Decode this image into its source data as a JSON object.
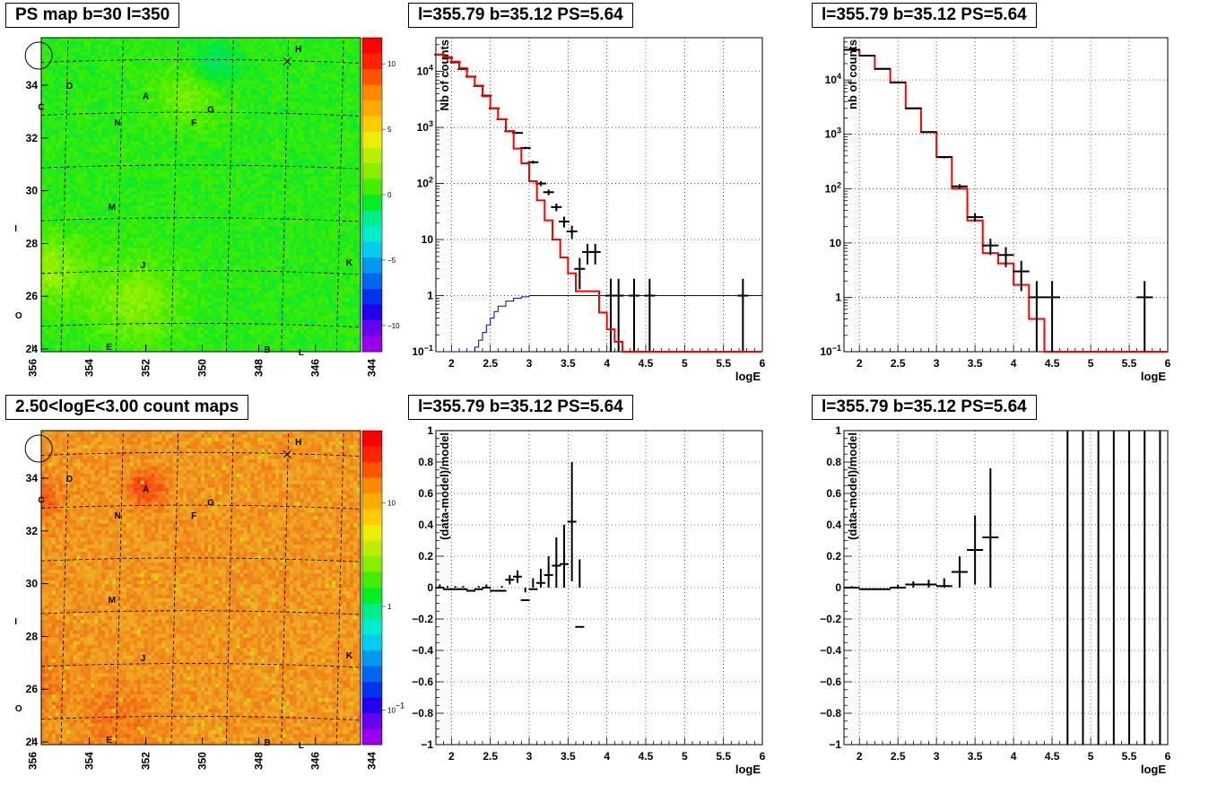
{
  "panels": {
    "p1": {
      "title": "PS map b=30 l=350"
    },
    "p2": {
      "title": "l=355.79 b=35.12 PS=5.64"
    },
    "p3": {
      "title": "l=355.79 b=35.12 PS=5.64"
    },
    "p4": {
      "title": "2.50<logE<3.00 count maps"
    },
    "p5": {
      "title": "l=355.79 b=35.12 PS=5.64"
    },
    "p6": {
      "title": "l=355.79 b=35.12 PS=5.64"
    }
  },
  "colors": {
    "model": "#ff0000",
    "exposure": "#0000cc",
    "data": "#000000"
  },
  "chart_data": [
    {
      "type": "heatmap",
      "title": "PS map b=30 l=350",
      "x_ticks": [
        "356",
        "354",
        "352",
        "350",
        "348",
        "346",
        "344"
      ],
      "y_ticks": [
        "24",
        "26",
        "28",
        "30",
        "32",
        "34"
      ],
      "xlim": [
        355.7,
        344.4
      ],
      "ylim": [
        23.9,
        35.8
      ],
      "z_ticks": [
        "10",
        "5",
        "0",
        "-5",
        "-10"
      ],
      "zlim": [
        -12,
        12
      ],
      "base_color": "green",
      "sources": [
        {
          "name": "H",
          "l": 346.6,
          "b": 35.4
        },
        {
          "name": "D",
          "l": 354.7,
          "b": 34.0
        },
        {
          "name": "A",
          "l": 352.0,
          "b": 33.6
        },
        {
          "name": "C",
          "l": 355.7,
          "b": 33.2
        },
        {
          "name": "G",
          "l": 349.7,
          "b": 33.1
        },
        {
          "name": "N",
          "l": 353.0,
          "b": 32.6
        },
        {
          "name": "F",
          "l": 350.3,
          "b": 32.6
        },
        {
          "name": "M",
          "l": 353.2,
          "b": 29.4
        },
        {
          "name": "I",
          "l": 356.6,
          "b": 28.6
        },
        {
          "name": "J",
          "l": 352.1,
          "b": 27.2
        },
        {
          "name": "K",
          "l": 344.8,
          "b": 27.3
        },
        {
          "name": "O",
          "l": 356.5,
          "b": 25.3
        },
        {
          "name": "E",
          "l": 353.3,
          "b": 24.1
        },
        {
          "name": "B",
          "l": 347.7,
          "b": 24.0
        },
        {
          "name": "L",
          "l": 346.5,
          "b": 23.9
        }
      ],
      "circle": {
        "l": 355.79,
        "b": 35.12
      },
      "cross": {
        "l": 347.0,
        "b": 34.9
      }
    },
    {
      "type": "line",
      "title": "l=355.79 b=35.12 PS=5.64",
      "xlabel": "logE",
      "ylabel": "Nb of counts",
      "yscale": "log",
      "xlim": [
        1.8,
        6.0
      ],
      "ylim": [
        0.1,
        40000
      ],
      "x_ticks": [
        "2",
        "2.5",
        "3",
        "3.5",
        "4",
        "4.5",
        "5",
        "5.5",
        "6"
      ],
      "y_ticks": [
        "10-1",
        "1",
        "10",
        "102",
        "103",
        "104"
      ],
      "series": [
        {
          "name": "model",
          "style": "step",
          "edges": [
            1.8,
            1.9,
            2.0,
            2.1,
            2.2,
            2.3,
            2.4,
            2.5,
            2.6,
            2.7,
            2.8,
            2.9,
            3.0,
            3.1,
            3.2,
            3.3,
            3.4,
            3.5,
            3.6,
            3.7,
            3.8,
            3.9,
            4.0,
            4.1,
            4.2,
            4.3,
            6.0
          ],
          "values": [
            20000,
            18000,
            15000,
            11500,
            8000,
            5600,
            3600,
            2200,
            1400,
            850,
            420,
            230,
            110,
            50,
            22,
            10,
            4.8,
            2.5,
            1.2,
            1.2,
            1.2,
            0.5,
            0.25,
            0.15,
            0.1,
            0.1
          ]
        },
        {
          "name": "exposure",
          "style": "step",
          "edges": [
            1.8,
            2.3,
            2.35,
            2.4,
            2.45,
            2.5,
            2.55,
            2.6,
            2.7,
            2.8,
            2.9,
            3.0,
            3.2,
            6.0
          ],
          "values": [
            0.1,
            0.12,
            0.16,
            0.22,
            0.3,
            0.4,
            0.52,
            0.65,
            0.8,
            0.9,
            0.95,
            1.0,
            1.0
          ]
        },
        {
          "name": "data",
          "style": "points",
          "x": [
            1.85,
            1.95,
            2.05,
            2.15,
            2.25,
            2.35,
            2.45,
            2.55,
            2.65,
            2.75,
            2.85,
            2.95,
            3.05,
            3.15,
            3.25,
            3.35,
            3.45,
            3.55,
            3.65,
            3.75,
            3.85,
            4.05,
            4.15,
            4.35,
            4.55,
            5.75
          ],
          "y": [
            20000,
            17500,
            14500,
            11000,
            8100,
            5500,
            3700,
            2200,
            1400,
            860,
            800,
            430,
            240,
            100,
            70,
            38,
            21,
            14,
            3,
            6,
            6,
            1,
            1,
            1,
            1,
            1
          ],
          "yerr": [
            140,
            130,
            120,
            105,
            90,
            74,
            61,
            47,
            37,
            29,
            28,
            21,
            15,
            10,
            8,
            6,
            4.6,
            3.7,
            1.7,
            2.4,
            2.4,
            1,
            1,
            1,
            1,
            1
          ]
        }
      ]
    },
    {
      "type": "line",
      "title": "l=355.79 b=35.12 PS=5.64",
      "xlabel": "logE",
      "ylabel": "nb of counts",
      "yscale": "log",
      "xlim": [
        1.8,
        6.0
      ],
      "ylim": [
        0.1,
        60000
      ],
      "x_ticks": [
        "2",
        "2.5",
        "3",
        "3.5",
        "4",
        "4.5",
        "5",
        "5.5",
        "6"
      ],
      "y_ticks": [
        "10-1",
        "1",
        "10",
        "102",
        "103",
        "104"
      ],
      "series": [
        {
          "name": "model",
          "style": "step",
          "edges": [
            1.8,
            2.0,
            2.2,
            2.4,
            2.6,
            2.8,
            3.0,
            3.2,
            3.4,
            3.6,
            3.8,
            4.0,
            4.2,
            4.4,
            6.0
          ],
          "values": [
            36000,
            28000,
            16000,
            9000,
            3000,
            1100,
            380,
            100,
            26,
            6.5,
            4.2,
            1.7,
            0.4,
            0.1
          ]
        },
        {
          "name": "data",
          "style": "points",
          "x": [
            1.9,
            2.1,
            2.3,
            2.5,
            2.7,
            2.9,
            3.1,
            3.3,
            3.5,
            3.7,
            3.9,
            4.1,
            4.3,
            4.5,
            5.7
          ],
          "y": [
            36000,
            28000,
            16000,
            9000,
            3000,
            1100,
            380,
            110,
            30,
            9,
            6,
            3,
            1,
            1,
            1
          ],
          "yerr": [
            190,
            167,
            126,
            95,
            55,
            33,
            19,
            10.5,
            5.5,
            3,
            2.4,
            1.7,
            1,
            1,
            1
          ]
        }
      ]
    },
    {
      "type": "heatmap",
      "title": "2.50<logE<3.00 count maps",
      "x_ticks": [
        "356",
        "354",
        "352",
        "350",
        "348",
        "346",
        "344"
      ],
      "y_ticks": [
        "24",
        "26",
        "28",
        "30",
        "32",
        "34"
      ],
      "xlim": [
        355.7,
        344.4
      ],
      "ylim": [
        23.9,
        35.8
      ],
      "z_ticks": [
        "10",
        "1",
        "10-1"
      ],
      "zscale": "log",
      "base_color": "orange"
    },
    {
      "type": "scatter",
      "title": "l=355.79 b=35.12 PS=5.64",
      "xlabel": "logE",
      "ylabel": "(data-model)/model",
      "xlim": [
        1.8,
        6.0
      ],
      "ylim": [
        -1,
        1
      ],
      "x_ticks": [
        "2",
        "2.5",
        "3",
        "3.5",
        "4",
        "4.5",
        "5",
        "5.5",
        "6"
      ],
      "y_ticks": [
        "-1",
        "-0.8",
        "-0.6",
        "-0.4",
        "-0.2",
        "0",
        "0.2",
        "0.4",
        "0.6",
        "0.8",
        "1"
      ],
      "x": [
        1.85,
        1.95,
        2.05,
        2.15,
        2.25,
        2.35,
        2.45,
        2.55,
        2.65,
        2.75,
        2.85,
        2.95,
        3.05,
        3.15,
        3.25,
        3.35,
        3.45,
        3.55,
        3.65
      ],
      "y": [
        0.0,
        -0.01,
        -0.01,
        -0.01,
        -0.02,
        -0.01,
        0.0,
        -0.02,
        -0.02,
        0.05,
        0.07,
        -0.08,
        -0.01,
        0.03,
        0.08,
        0.14,
        0.15,
        0.42,
        -0.25
      ],
      "yerr": [
        0.02,
        0.02,
        0.02,
        0.02,
        0.02,
        0.02,
        0.02,
        0.02,
        0.03,
        0.03,
        0.04,
        0.05,
        0.07,
        0.09,
        0.12,
        0.18,
        0.25,
        0.38,
        0.43
      ]
    },
    {
      "type": "scatter",
      "title": "l=355.79 b=35.12 PS=5.64",
      "xlabel": "logE",
      "ylabel": "(data-model)/model",
      "xlim": [
        1.8,
        6.0
      ],
      "ylim": [
        -1,
        1
      ],
      "x_ticks": [
        "2",
        "2.5",
        "3",
        "3.5",
        "4",
        "4.5",
        "5",
        "5.5",
        "6"
      ],
      "y_ticks": [
        "-1",
        "-0.8",
        "-0.6",
        "-0.4",
        "-0.2",
        "0",
        "0.2",
        "0.4",
        "0.6",
        "0.8",
        "1"
      ],
      "x": [
        1.9,
        2.1,
        2.3,
        2.5,
        2.7,
        2.9,
        3.1,
        3.3,
        3.5,
        3.7
      ],
      "y": [
        0.0,
        -0.01,
        -0.01,
        0.0,
        0.02,
        0.02,
        0.01,
        0.1,
        0.24,
        0.32
      ],
      "yerr": [
        0.01,
        0.01,
        0.01,
        0.02,
        0.02,
        0.03,
        0.05,
        0.1,
        0.22,
        0.44
      ],
      "vlines_x": [
        4.7,
        4.9,
        5.1,
        5.3,
        5.5,
        5.7,
        5.9
      ]
    }
  ]
}
